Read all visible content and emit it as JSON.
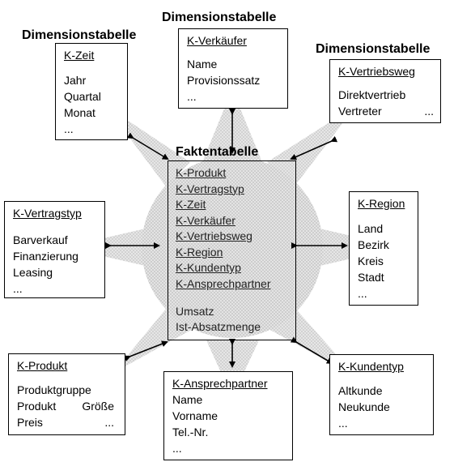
{
  "fact_table": {
    "header": "Faktentabelle",
    "keys": [
      "K-Produkt",
      "K-Vertragstyp",
      "K-Zeit",
      "K-Verkäufer",
      "K-Vertriebsweg",
      "K-Region",
      "K-Kundentyp",
      "K-Ansprechpartner"
    ],
    "measures": [
      "Umsatz",
      "Ist-Absatzmenge"
    ]
  },
  "dimensions": {
    "zeit": {
      "header": "Dimensionstabelle",
      "title": "K-Zeit",
      "attributes": [
        "Jahr",
        "Quartal",
        "Monat",
        "..."
      ]
    },
    "verkaeufer": {
      "header": "Dimensionstabelle",
      "title": "K-Verkäufer",
      "attributes": [
        "Name",
        "Provisionssatz",
        "..."
      ]
    },
    "vertriebsweg": {
      "header": "Dimensionstabelle",
      "title": "K-Vertriebsweg",
      "attributes": [
        "Direktvertrieb",
        "Vertreter",
        "..."
      ]
    },
    "vertragstyp": {
      "title": "K-Vertragstyp",
      "attributes": [
        "Barverkauf",
        "Finanzierung",
        "Leasing",
        "..."
      ]
    },
    "region": {
      "title": "K-Region",
      "attributes": [
        "Land",
        "Bezirk",
        "Kreis",
        "Stadt",
        "..."
      ]
    },
    "produkt": {
      "title": "K-Produkt",
      "attributes": [
        "Produktgruppe",
        "Produkt",
        "Größe",
        "Preis",
        "..."
      ]
    },
    "ansprechpartner": {
      "title": "K-Ansprechpartner",
      "attributes": [
        "Name",
        "Vorname",
        "Tel.-Nr.",
        "..."
      ]
    },
    "kundentyp": {
      "title": "K-Kundentyp",
      "attributes": [
        "Altkunde",
        "Neukunde",
        "..."
      ]
    }
  },
  "colors": {
    "ray_fill": "#cfcfcf",
    "circle_fill": "#d9d9d9",
    "border": "#000000"
  }
}
